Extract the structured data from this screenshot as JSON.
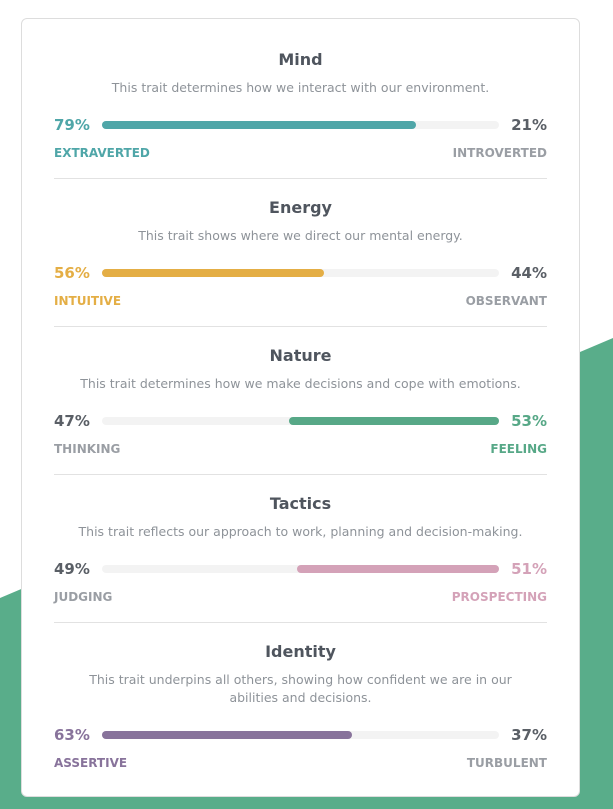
{
  "traits": [
    {
      "title": "Mind",
      "description": "This trait determines how we interact with our environment.",
      "color": "#4fa6a8",
      "dominant": "left",
      "left": {
        "name": "EXTRAVERTED",
        "percent": 79,
        "percent_label": "79%"
      },
      "right": {
        "name": "INTROVERTED",
        "percent": 21,
        "percent_label": "21%"
      }
    },
    {
      "title": "Energy",
      "description": "This trait shows where we direct our mental energy.",
      "color": "#e4ae45",
      "dominant": "left",
      "left": {
        "name": "INTUITIVE",
        "percent": 56,
        "percent_label": "56%"
      },
      "right": {
        "name": "OBSERVANT",
        "percent": 44,
        "percent_label": "44%"
      }
    },
    {
      "title": "Nature",
      "description": "This trait determines how we make decisions and cope with emotions.",
      "color": "#57a887",
      "dominant": "right",
      "left": {
        "name": "THINKING",
        "percent": 47,
        "percent_label": "47%"
      },
      "right": {
        "name": "FEELING",
        "percent": 53,
        "percent_label": "53%"
      }
    },
    {
      "title": "Tactics",
      "description": "This trait reflects our approach to work, planning and decision-making.",
      "color": "#d4a2b8",
      "dominant": "right",
      "left": {
        "name": "JUDGING",
        "percent": 49,
        "percent_label": "49%"
      },
      "right": {
        "name": "PROSPECTING",
        "percent": 51,
        "percent_label": "51%"
      }
    },
    {
      "title": "Identity",
      "description": "This trait underpins all others, showing how confident we are in our abilities and decisions.",
      "color": "#88739b",
      "dominant": "left",
      "left": {
        "name": "ASSERTIVE",
        "percent": 63,
        "percent_label": "63%"
      },
      "right": {
        "name": "TURBULENT",
        "percent": 37,
        "percent_label": "37%"
      }
    }
  ]
}
